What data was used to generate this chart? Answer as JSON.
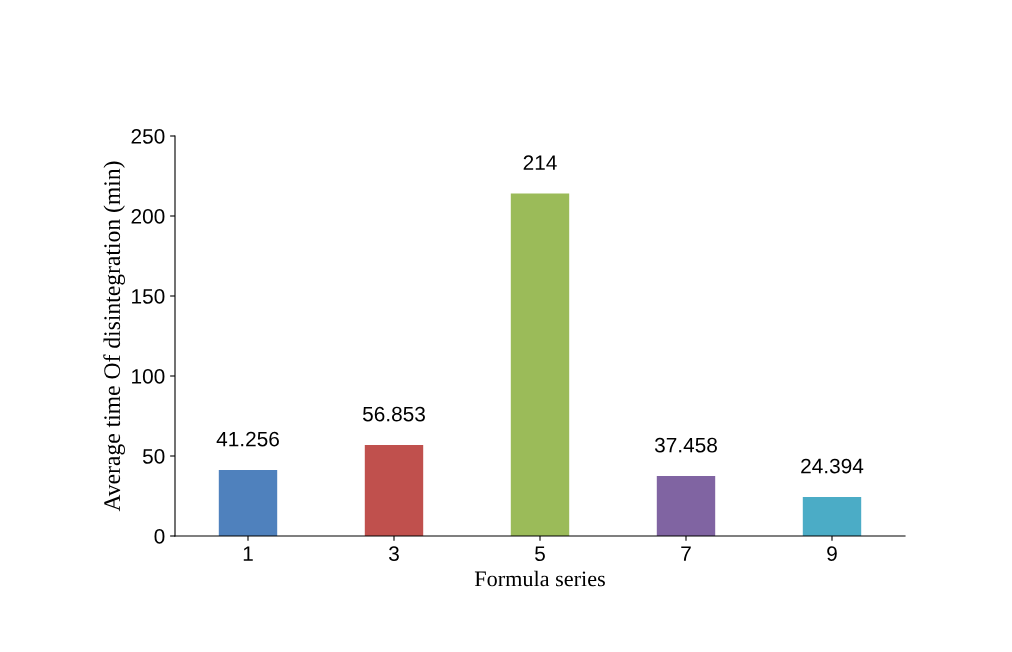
{
  "chart_data": {
    "type": "bar",
    "xlabel": "Formula series",
    "ylabel": "Average time Of disintegration (min)",
    "categories": [
      "1",
      "3",
      "5",
      "7",
      "9"
    ],
    "values": [
      41.256,
      56.853,
      214,
      37.458,
      24.394
    ],
    "colors": [
      "#4f81bd",
      "#c0504d",
      "#9bbb59",
      "#8064a2",
      "#4bacc6"
    ],
    "ylim": [
      0,
      250
    ],
    "yticks": [
      0,
      50,
      100,
      150,
      200,
      250
    ],
    "data_labels": true,
    "grid": false
  }
}
